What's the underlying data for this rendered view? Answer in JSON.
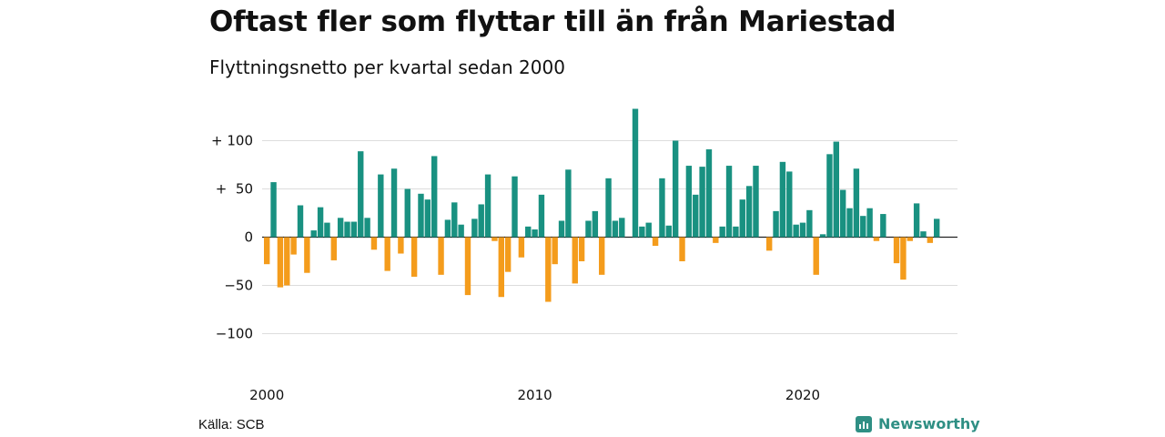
{
  "header": {
    "title": "Oftast fler som flyttar till än från Mariestad",
    "subtitle": "Flyttningsnetto per kvartal sedan 2000"
  },
  "footer": {
    "source": "Källa: SCB",
    "brand": "Newsworthy"
  },
  "colors": {
    "positive": "#199181",
    "negative": "#f49c1c",
    "grid": "#dddddd",
    "brand": "#2f8f84"
  },
  "chart_data": {
    "type": "bar",
    "title": "Oftast fler som flyttar till än från Mariestad",
    "subtitle": "Flyttningsnetto per kvartal sedan 2000",
    "x_start": "2000 Q1",
    "x_ticks": [
      {
        "quarter_index": 0,
        "label": "2000"
      },
      {
        "quarter_index": 40,
        "label": "2010"
      },
      {
        "quarter_index": 80,
        "label": "2020"
      }
    ],
    "y_ticks": [
      {
        "value": 100,
        "label": "+ 100"
      },
      {
        "value": 50,
        "label": "+  50"
      },
      {
        "value": 0,
        "label": "0"
      },
      {
        "value": -50,
        "label": "−50"
      },
      {
        "value": -100,
        "label": "−100"
      }
    ],
    "ylim": [
      -120,
      135
    ],
    "grid": true,
    "values": [
      -28,
      57,
      -52,
      -50,
      -18,
      33,
      -37,
      7,
      31,
      15,
      -24,
      20,
      16,
      16,
      89,
      20,
      -13,
      65,
      -35,
      71,
      -17,
      50,
      -41,
      45,
      39,
      84,
      -39,
      18,
      36,
      13,
      -60,
      19,
      34,
      65,
      -4,
      -62,
      -36,
      63,
      -21,
      11,
      8,
      44,
      -67,
      -28,
      17,
      70,
      -48,
      -25,
      17,
      27,
      -39,
      61,
      17,
      20,
      0,
      133,
      11,
      15,
      -9,
      61,
      12,
      100,
      -25,
      74,
      44,
      73,
      91,
      -6,
      11,
      74,
      11,
      39,
      53,
      74,
      0,
      -14,
      27,
      78,
      68,
      13,
      15,
      28,
      -39,
      3,
      86,
      99,
      49,
      30,
      71,
      22,
      30,
      -4,
      24,
      0,
      -27,
      -44,
      -4,
      35,
      6,
      -6,
      19
    ]
  }
}
